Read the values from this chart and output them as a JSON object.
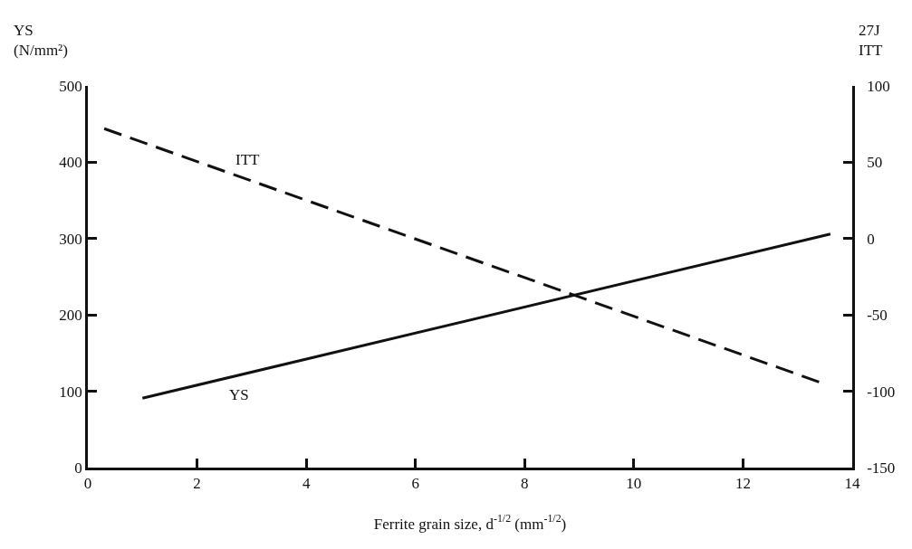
{
  "chart_data": {
    "type": "line",
    "xlabel": "Ferrite grain size, d$^{-1/2}$ (mm$^{-1/2}$)",
    "ylabel": "YS\n(N/mm²)",
    "y2label": "27J\nITT",
    "xlim": [
      0,
      14
    ],
    "xticks": [
      0,
      2,
      4,
      6,
      8,
      10,
      12,
      14
    ],
    "ylim": [
      0,
      500
    ],
    "yticks": [
      0,
      100,
      200,
      300,
      400,
      500
    ],
    "y2lim": [
      -150,
      100
    ],
    "y2ticks": [
      -150,
      -100,
      -50,
      0,
      50,
      100
    ],
    "legend": false,
    "series": [
      {
        "name": "YS",
        "color": "#111111",
        "x": [
          1.0,
          13.6
        ],
        "values": [
          91,
          306
        ],
        "line_style": "solid"
      },
      {
        "name": "ITT",
        "color": "#111111",
        "x": [
          0.3,
          13.4
        ],
        "values": [
          72,
          -94
        ],
        "line_style": "dashed",
        "axis": "y2"
      }
    ]
  }
}
